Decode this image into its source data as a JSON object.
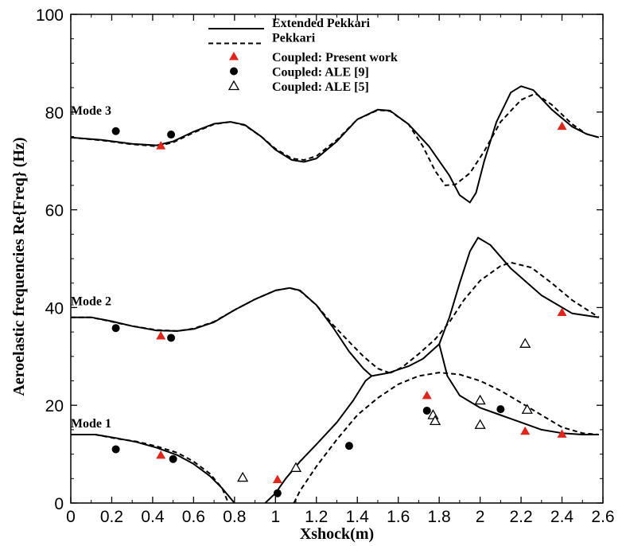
{
  "chart_data": {
    "type": "line",
    "xlabel": "Xshock(m)",
    "ylabel": "Aeroelastic frequencies Re{Freq} (Hz)",
    "xlim": [
      0,
      2.6
    ],
    "ylim": [
      0,
      100
    ],
    "x_ticks": [
      "0",
      "0.2",
      "0.4",
      "0.6",
      "0.8",
      "1",
      "1.2",
      "1.4",
      "1.6",
      "1.8",
      "2",
      "2.2",
      "2.4",
      "2.6"
    ],
    "y_ticks": [
      "0",
      "20",
      "40",
      "60",
      "80",
      "100"
    ],
    "grid": false,
    "legend_position": "top-center",
    "annotations": [
      {
        "text": "Mode 3",
        "x": 0.05,
        "y": 79.5
      },
      {
        "text": "Mode 2",
        "x": 0.05,
        "y": 40.5
      },
      {
        "text": "Mode 1",
        "x": 0.05,
        "y": 15.5
      }
    ],
    "series": [
      {
        "name": "Extended Pekkari",
        "style": "solid",
        "color": "#000000",
        "segments": [
          [
            [
              0,
              74.8
            ],
            [
              0.15,
              74.3
            ],
            [
              0.3,
              73.5
            ],
            [
              0.42,
              73.2
            ],
            [
              0.5,
              74
            ],
            [
              0.6,
              76
            ],
            [
              0.7,
              77.6
            ],
            [
              0.78,
              78
            ],
            [
              0.85,
              77.4
            ],
            [
              0.93,
              75
            ],
            [
              1.0,
              72.3
            ],
            [
              1.08,
              70.2
            ],
            [
              1.14,
              69.8
            ],
            [
              1.2,
              70.5
            ],
            [
              1.3,
              74
            ],
            [
              1.4,
              78.5
            ],
            [
              1.5,
              80.5
            ],
            [
              1.56,
              80.3
            ],
            [
              1.65,
              77.5
            ],
            [
              1.75,
              73
            ],
            [
              1.85,
              67
            ],
            [
              1.9,
              63
            ],
            [
              1.95,
              61.5
            ],
            [
              1.98,
              63.5
            ],
            [
              2.02,
              70
            ],
            [
              2.08,
              78
            ],
            [
              2.15,
              84
            ],
            [
              2.2,
              85.3
            ],
            [
              2.26,
              84.5
            ],
            [
              2.35,
              80.5
            ],
            [
              2.45,
              77
            ],
            [
              2.52,
              75.5
            ],
            [
              2.58,
              74.8
            ]
          ],
          [
            [
              0,
              38
            ],
            [
              0.1,
              38
            ],
            [
              0.2,
              37.2
            ],
            [
              0.3,
              36.2
            ],
            [
              0.42,
              35.3
            ],
            [
              0.52,
              35.2
            ],
            [
              0.6,
              35.6
            ],
            [
              0.7,
              37
            ],
            [
              0.8,
              39.5
            ],
            [
              0.9,
              41.7
            ],
            [
              1.0,
              43.5
            ],
            [
              1.07,
              44
            ],
            [
              1.12,
              43.5
            ],
            [
              1.2,
              40.5
            ],
            [
              1.28,
              36
            ],
            [
              1.36,
              31
            ],
            [
              1.43,
              27.5
            ],
            [
              1.47,
              26
            ],
            [
              1.55,
              26.6
            ],
            [
              1.65,
              28
            ],
            [
              1.72,
              29.5
            ],
            [
              1.8,
              32.5
            ],
            [
              1.85,
              38
            ],
            [
              1.9,
              45
            ],
            [
              1.95,
              51.5
            ],
            [
              1.99,
              54.3
            ],
            [
              2.05,
              52.8
            ],
            [
              2.15,
              48
            ],
            [
              2.3,
              42.5
            ],
            [
              2.45,
              38.8
            ],
            [
              2.58,
              38
            ]
          ],
          [
            [
              0,
              14
            ],
            [
              0.12,
              14
            ],
            [
              0.22,
              13.3
            ],
            [
              0.32,
              12.5
            ],
            [
              0.42,
              11.3
            ],
            [
              0.52,
              9.8
            ],
            [
              0.6,
              8
            ],
            [
              0.68,
              5.5
            ],
            [
              0.74,
              3
            ],
            [
              0.8,
              0
            ]
          ],
          [
            [
              0.95,
              0
            ],
            [
              1.0,
              2
            ],
            [
              1.05,
              5
            ],
            [
              1.12,
              8.5
            ],
            [
              1.2,
              12
            ],
            [
              1.3,
              16.5
            ],
            [
              1.38,
              21
            ],
            [
              1.44,
              25
            ],
            [
              1.47,
              26
            ]
          ],
          [
            [
              1.8,
              32.5
            ],
            [
              1.84,
              26
            ],
            [
              1.9,
              22
            ],
            [
              2.0,
              19.5
            ],
            [
              2.1,
              18
            ],
            [
              2.2,
              16.5
            ],
            [
              2.3,
              15
            ],
            [
              2.4,
              14.3
            ],
            [
              2.5,
              14
            ],
            [
              2.58,
              14
            ]
          ]
        ]
      },
      {
        "name": "Pekkari",
        "style": "dashed",
        "color": "#000000",
        "segments": [
          [
            [
              0,
              74.8
            ],
            [
              0.15,
              74.2
            ],
            [
              0.3,
              73.4
            ],
            [
              0.42,
              73
            ],
            [
              0.5,
              73.8
            ],
            [
              0.6,
              75.8
            ],
            [
              0.7,
              77.5
            ],
            [
              0.78,
              78
            ],
            [
              0.85,
              77.3
            ],
            [
              0.93,
              75
            ],
            [
              1.0,
              72.5
            ],
            [
              1.08,
              70.5
            ],
            [
              1.14,
              70.2
            ],
            [
              1.2,
              71
            ],
            [
              1.3,
              74.3
            ],
            [
              1.4,
              78.5
            ],
            [
              1.5,
              80.4
            ],
            [
              1.56,
              80.2
            ],
            [
              1.65,
              77.5
            ],
            [
              1.72,
              73
            ],
            [
              1.78,
              68
            ],
            [
              1.83,
              65
            ],
            [
              1.88,
              65.2
            ],
            [
              1.95,
              67.5
            ],
            [
              2.02,
              72
            ],
            [
              2.1,
              78
            ],
            [
              2.2,
              82.5
            ],
            [
              2.27,
              83.8
            ],
            [
              2.35,
              81.5
            ],
            [
              2.45,
              77.5
            ],
            [
              2.52,
              75.5
            ],
            [
              2.58,
              74.8
            ]
          ],
          [
            [
              0,
              38
            ],
            [
              0.1,
              38
            ],
            [
              0.2,
              37.1
            ],
            [
              0.3,
              36.2
            ],
            [
              0.42,
              35.4
            ],
            [
              0.52,
              35.2
            ],
            [
              0.6,
              35.7
            ],
            [
              0.7,
              37.1
            ],
            [
              0.8,
              39.5
            ],
            [
              0.9,
              41.7
            ],
            [
              1.0,
              43.5
            ],
            [
              1.07,
              44
            ],
            [
              1.12,
              43.4
            ],
            [
              1.2,
              40.5
            ],
            [
              1.28,
              36.5
            ],
            [
              1.36,
              33
            ],
            [
              1.43,
              30
            ],
            [
              1.5,
              27.5
            ],
            [
              1.56,
              26.6
            ]
          ],
          [
            [
              1.56,
              26.6
            ],
            [
              1.62,
              27.8
            ],
            [
              1.7,
              30.5
            ],
            [
              1.78,
              33.5
            ],
            [
              1.85,
              37
            ],
            [
              1.92,
              41.5
            ],
            [
              2.0,
              45.5
            ],
            [
              2.1,
              48.5
            ],
            [
              2.15,
              49.2
            ],
            [
              2.25,
              48.2
            ],
            [
              2.35,
              45
            ],
            [
              2.45,
              41.5
            ],
            [
              2.58,
              38
            ]
          ],
          [
            [
              0,
              14
            ],
            [
              0.12,
              14
            ],
            [
              0.22,
              13.2
            ],
            [
              0.32,
              12.6
            ],
            [
              0.42,
              11.6
            ],
            [
              0.52,
              10.3
            ],
            [
              0.6,
              8.5
            ],
            [
              0.68,
              6
            ],
            [
              0.74,
              3
            ],
            [
              0.77,
              0
            ]
          ],
          [
            [
              1.09,
              0
            ],
            [
              1.12,
              2.5
            ],
            [
              1.2,
              7.5
            ],
            [
              1.3,
              13
            ],
            [
              1.4,
              18
            ],
            [
              1.5,
              21.5
            ],
            [
              1.6,
              24.3
            ],
            [
              1.7,
              26
            ],
            [
              1.8,
              26.7
            ],
            [
              1.9,
              26.3
            ],
            [
              2.0,
              25
            ],
            [
              2.1,
              23
            ],
            [
              2.2,
              20.5
            ],
            [
              2.3,
              18
            ],
            [
              2.4,
              15.5
            ],
            [
              2.5,
              14.3
            ],
            [
              2.58,
              14
            ]
          ]
        ]
      },
      {
        "name": "Coupled: Present work",
        "style": "marker",
        "marker": "triangle-filled",
        "color": "#e0261b",
        "points": [
          [
            0.44,
            73.1
          ],
          [
            2.4,
            77.1
          ],
          [
            0.44,
            34.2
          ],
          [
            2.4,
            39
          ],
          [
            1.74,
            22
          ],
          [
            2.22,
            14.7
          ],
          [
            2.4,
            14.1
          ],
          [
            0.44,
            9.8
          ],
          [
            1.01,
            4.8
          ]
        ]
      },
      {
        "name": "Coupled: ALE [9]",
        "style": "marker",
        "marker": "circle-filled",
        "color": "#000000",
        "points": [
          [
            0.22,
            76.1
          ],
          [
            0.49,
            75.4
          ],
          [
            0.22,
            35.8
          ],
          [
            0.49,
            33.8
          ],
          [
            0.22,
            11
          ],
          [
            0.5,
            9
          ],
          [
            1.01,
            2
          ],
          [
            1.36,
            11.7
          ],
          [
            1.74,
            18.9
          ],
          [
            2.1,
            19.2
          ]
        ]
      },
      {
        "name": "Coupled: ALE [5]",
        "style": "marker",
        "marker": "triangle-open",
        "color": "#000000",
        "points": [
          [
            0.84,
            5.2
          ],
          [
            1.1,
            7.2
          ],
          [
            1.77,
            18
          ],
          [
            1.78,
            16.8
          ],
          [
            2.0,
            21
          ],
          [
            2.0,
            16
          ],
          [
            2.22,
            32.6
          ],
          [
            2.23,
            19.1
          ]
        ]
      }
    ]
  }
}
